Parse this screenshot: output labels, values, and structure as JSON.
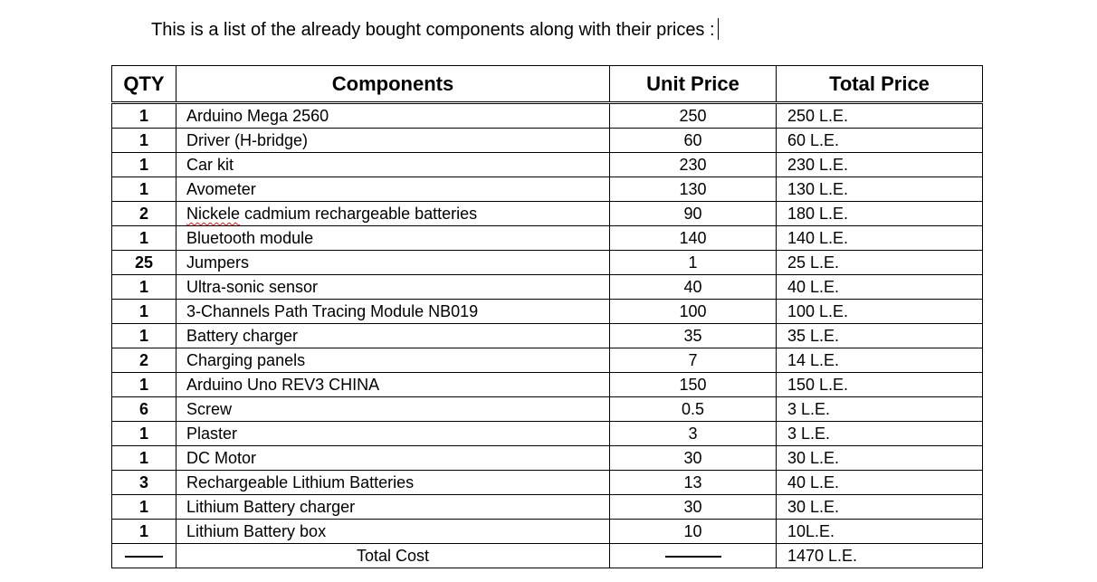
{
  "intro_text": "This is a list of the already bought components along with their prices :",
  "table": {
    "headers": {
      "qty": "QTY",
      "components": "Components",
      "unit_price": "Unit Price",
      "total_price": "Total Price"
    },
    "rows": [
      {
        "qty": "1",
        "component": "Arduino Mega 2560",
        "unit_price": "250",
        "total_price": "250 L.E."
      },
      {
        "qty": "1",
        "component": "Driver (H-bridge)",
        "unit_price": "60",
        "total_price": "60 L.E."
      },
      {
        "qty": "1",
        "component": "Car kit",
        "unit_price": "230",
        "total_price": "230 L.E."
      },
      {
        "qty": "1",
        "component": "Avometer",
        "unit_price": "130",
        "total_price": "130 L.E."
      },
      {
        "qty": "2",
        "component_misspelled_word": "Nickele",
        "component_rest": " cadmium rechargeable batteries",
        "unit_price": "90",
        "total_price": "180 L.E."
      },
      {
        "qty": "1",
        "component": "Bluetooth module",
        "unit_price": "140",
        "total_price": "140 L.E."
      },
      {
        "qty": "25",
        "component": "Jumpers",
        "unit_price": "1",
        "total_price": "25 L.E."
      },
      {
        "qty": "1",
        "component": "Ultra-sonic sensor",
        "unit_price": "40",
        "total_price": "40 L.E."
      },
      {
        "qty": "1",
        "component": "3-Channels Path Tracing Module NB019",
        "unit_price": "100",
        "total_price": "100 L.E."
      },
      {
        "qty": "1",
        "component": "Battery charger",
        "unit_price": "35",
        "total_price": "35 L.E."
      },
      {
        "qty": "2",
        "component": "Charging panels",
        "unit_price": "7",
        "total_price": "14 L.E."
      },
      {
        "qty": "1",
        "component": "Arduino Uno REV3 CHINA",
        "unit_price": "150",
        "total_price": "150 L.E."
      },
      {
        "qty": "6",
        "component": "Screw",
        "unit_price": "0.5",
        "total_price": "3 L.E."
      },
      {
        "qty": "1",
        "component": "Plaster",
        "unit_price": "3",
        "total_price": "3 L.E."
      },
      {
        "qty": "1",
        "component": "DC Motor",
        "unit_price": "30",
        "total_price": "30 L.E."
      },
      {
        "qty": "3",
        "component": "Rechargeable Lithium Batteries",
        "unit_price": "13",
        "total_price": "40 L.E."
      },
      {
        "qty": "1",
        "component": "Lithium Battery charger",
        "unit_price": "30",
        "total_price": "30 L.E."
      },
      {
        "qty": "1",
        "component": "Lithium Battery box",
        "unit_price": "10",
        "total_price": "10L.E."
      }
    ],
    "total_row": {
      "label": "Total Cost",
      "total_price": "1470 L.E."
    }
  }
}
